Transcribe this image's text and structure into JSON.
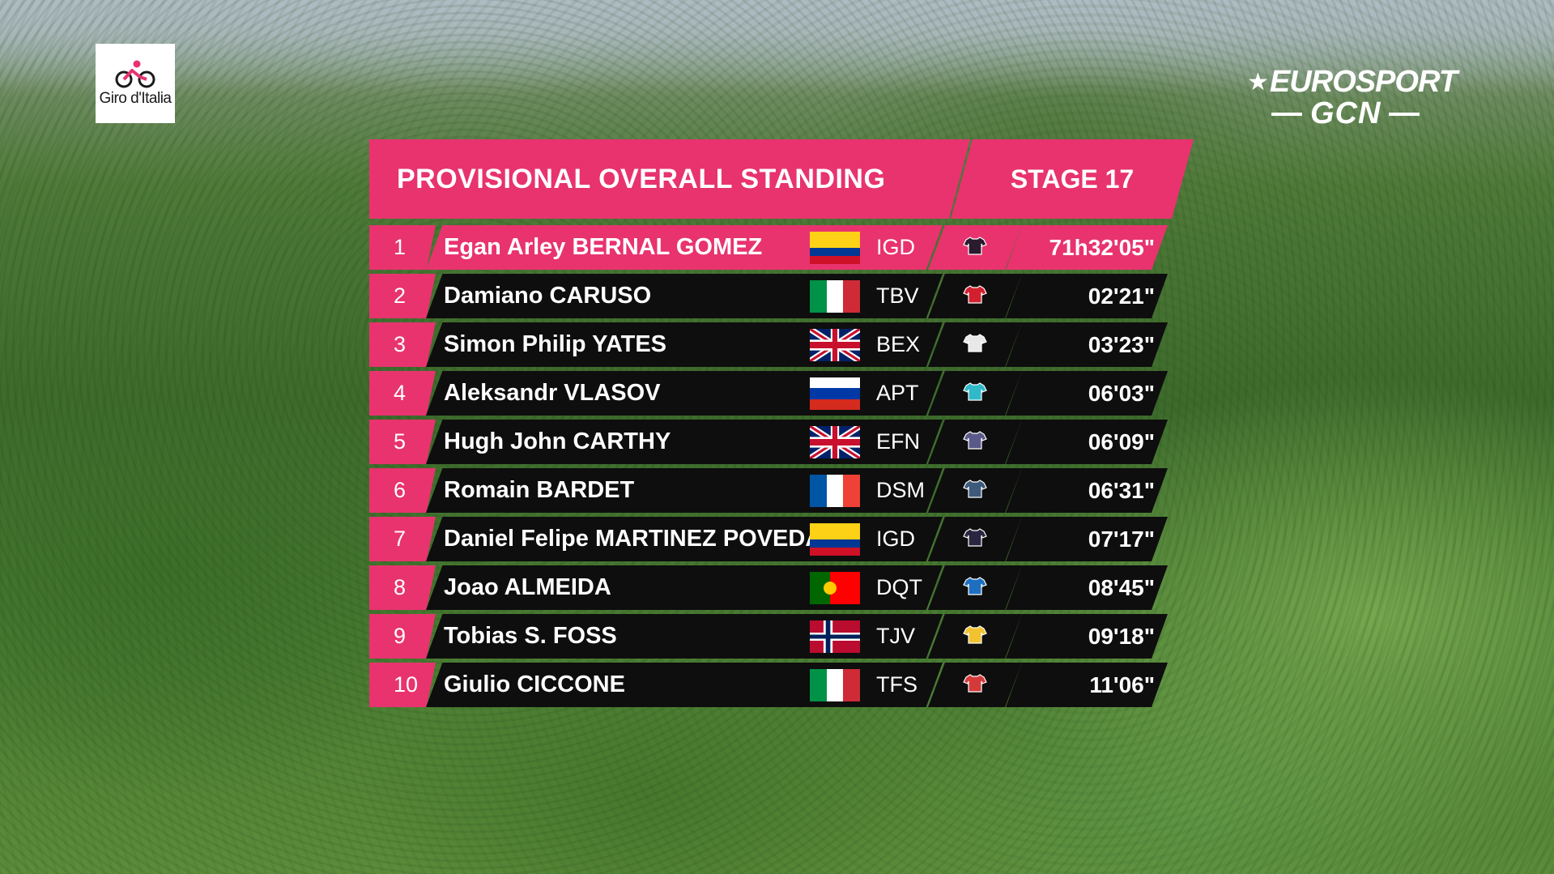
{
  "header": {
    "title": "PROVISIONAL OVERALL STANDING",
    "stage": "STAGE 17"
  },
  "event_logo": {
    "text": "Giro d'Italia",
    "icon": "cyclist-icon",
    "color": "#e8336f"
  },
  "broadcaster": {
    "top": "EUROSPORT",
    "bottom": "GCN"
  },
  "colors": {
    "accent": "#e8336f",
    "row_background": "#0e0e0e",
    "text": "#ffffff"
  },
  "standings": [
    {
      "position": "1",
      "name": "Egan Arley BERNAL GOMEZ",
      "flag": "colombia",
      "team": "IGD",
      "jersey": "jersey-icon",
      "jersey_color": "#2b1b2f",
      "time": "71h32'05\""
    },
    {
      "position": "2",
      "name": "Damiano CARUSO",
      "flag": "italy",
      "team": "TBV",
      "jersey": "jersey-icon",
      "jersey_color": "#d3202e",
      "time": "02'21\""
    },
    {
      "position": "3",
      "name": "Simon Philip YATES",
      "flag": "united-kingdom",
      "team": "BEX",
      "jersey": "jersey-icon",
      "jersey_color": "#e8e8e8",
      "time": "03'23\""
    },
    {
      "position": "4",
      "name": "Aleksandr VLASOV",
      "flag": "russia",
      "team": "APT",
      "jersey": "jersey-icon",
      "jersey_color": "#2fb9c9",
      "time": "06'03\""
    },
    {
      "position": "5",
      "name": "Hugh John CARTHY",
      "flag": "united-kingdom",
      "team": "EFN",
      "jersey": "jersey-icon",
      "jersey_color": "#5a5a8a",
      "time": "06'09\""
    },
    {
      "position": "6",
      "name": "Romain BARDET",
      "flag": "france",
      "team": "DSM",
      "jersey": "jersey-icon",
      "jersey_color": "#3d5a7a",
      "time": "06'31\""
    },
    {
      "position": "7",
      "name": "Daniel Felipe MARTINEZ POVEDA",
      "flag": "colombia",
      "team": "IGD",
      "jersey": "jersey-icon",
      "jersey_color": "#2b2540",
      "time": "07'17\""
    },
    {
      "position": "8",
      "name": "Joao ALMEIDA",
      "flag": "portugal",
      "team": "DQT",
      "jersey": "jersey-icon",
      "jersey_color": "#1f6fc0",
      "time": "08'45\""
    },
    {
      "position": "9",
      "name": "Tobias S. FOSS",
      "flag": "norway",
      "team": "TJV",
      "jersey": "jersey-icon",
      "jersey_color": "#f2c230",
      "time": "09'18\""
    },
    {
      "position": "10",
      "name": "Giulio CICCONE",
      "flag": "italy",
      "team": "TFS",
      "jersey": "jersey-icon",
      "jersey_color": "#d53a3a",
      "time": "11'06\""
    }
  ]
}
